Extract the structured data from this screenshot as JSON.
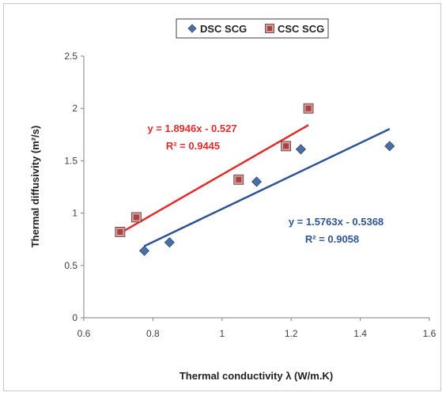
{
  "chart_data": {
    "type": "scatter",
    "xlabel": "Thermal conductivity λ (W/m.K)",
    "ylabel": "Thermal diffusivity (m²/s)",
    "xlim": [
      0.6,
      1.6
    ],
    "ylim": [
      0,
      2.5
    ],
    "x_ticks": [
      "0.6",
      "0.8",
      "1",
      "1.2",
      "1.4",
      "1.6"
    ],
    "y_ticks": [
      "0",
      "0.5",
      "1",
      "1.5",
      "2",
      "2.5"
    ],
    "legend_position": "top-center",
    "series": [
      {
        "name": "DSC SCG",
        "marker": "diamond",
        "color": "#4a6fa5",
        "x": [
          0.775,
          0.848,
          1.1,
          1.228,
          1.485
        ],
        "y": [
          0.64,
          0.72,
          1.3,
          1.61,
          1.64
        ],
        "trendline": {
          "slope": 1.5763,
          "intercept": -0.5368,
          "x_range": [
            0.775,
            1.485
          ],
          "color": "#2e5593",
          "equation": "y = 1.5763x - 0.5368",
          "r2": "R² = 0.9058"
        }
      },
      {
        "name": "CSC SCG",
        "marker": "square",
        "color": "#b04040",
        "x": [
          0.705,
          0.752,
          1.048,
          1.185,
          1.25
        ],
        "y": [
          0.82,
          0.96,
          1.32,
          1.64,
          2.0
        ],
        "trendline": {
          "slope": 1.8946,
          "intercept": -0.527,
          "x_range": [
            0.705,
            1.25
          ],
          "color": "#e32b2b",
          "equation": "y = 1.8946x - 0.527",
          "r2": "R² = 0.9445"
        }
      }
    ]
  }
}
